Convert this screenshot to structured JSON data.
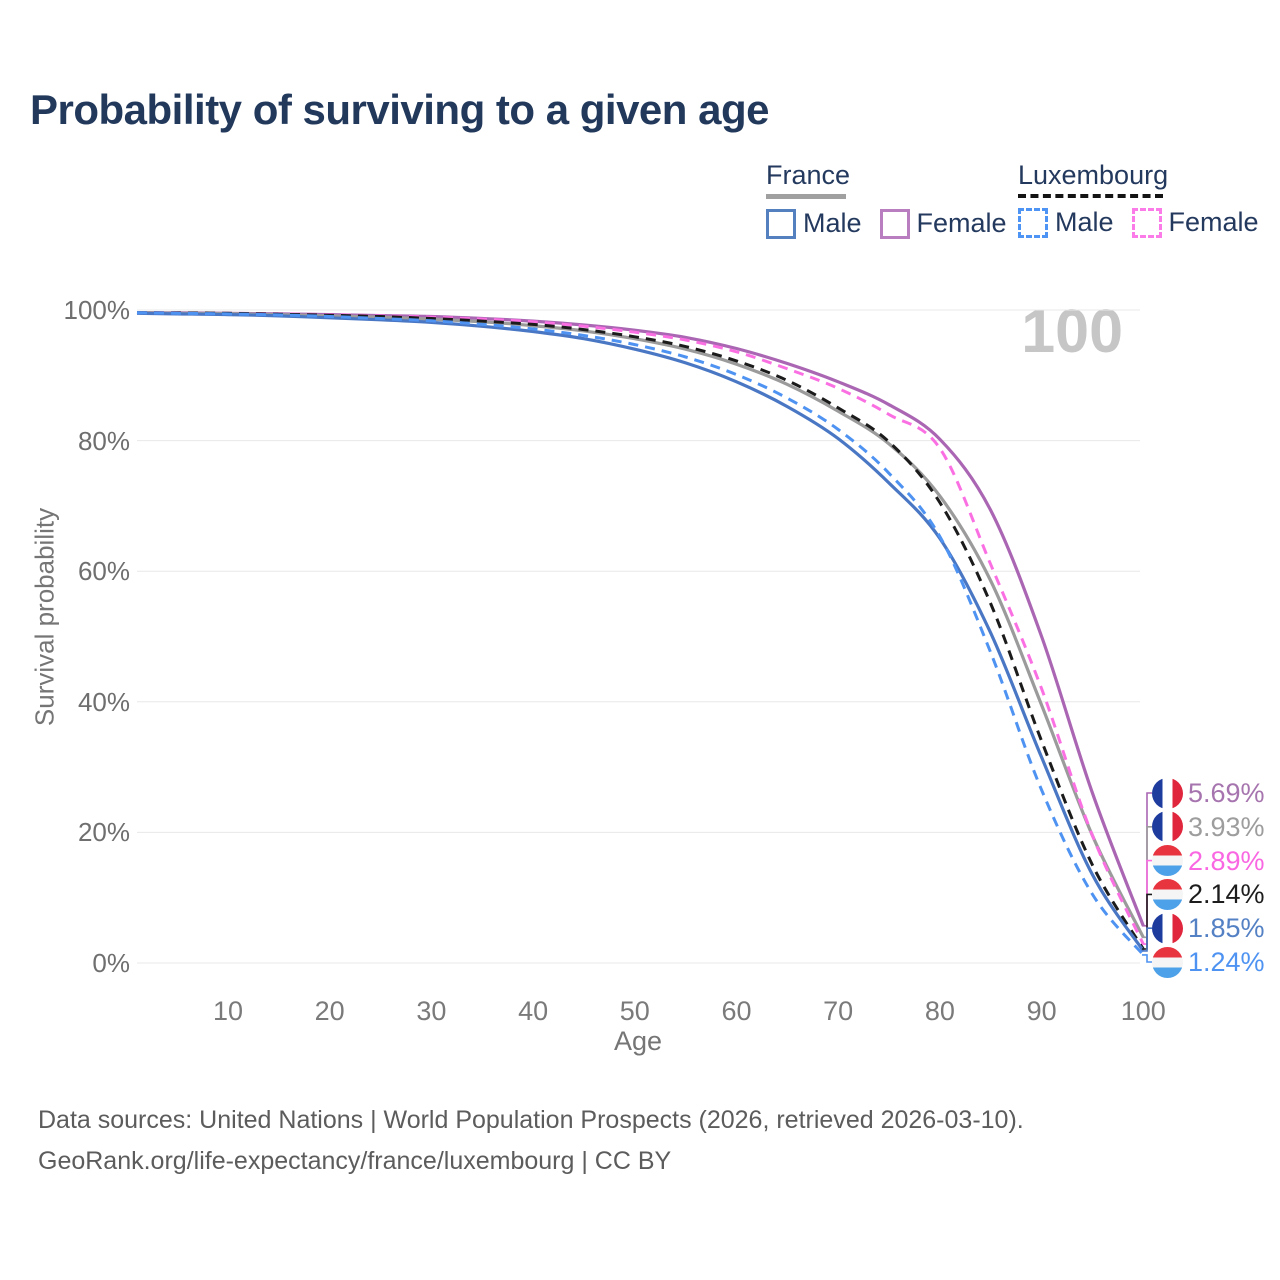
{
  "title": "Probability of surviving to a given age",
  "watermark": "100",
  "legend": {
    "text_color": "#24395e",
    "groups": [
      {
        "name": "France",
        "line_style": "solid",
        "underline_color": "#a0a0a0",
        "items": [
          {
            "label": "Male",
            "swatch_color": "#5580c0",
            "swatch_style": "solid"
          },
          {
            "label": "Female",
            "swatch_color": "#b97ec0",
            "swatch_style": "solid"
          }
        ]
      },
      {
        "name": "Luxembourg",
        "line_style": "dashed",
        "underline_color": "#141414",
        "items": [
          {
            "label": "Male",
            "swatch_color": "#4d94f5",
            "swatch_style": "dashed"
          },
          {
            "label": "Female",
            "swatch_color": "#fb7ce8",
            "swatch_style": "dashed"
          }
        ]
      }
    ]
  },
  "chart_data": {
    "type": "line",
    "title": "Probability of surviving to a given age",
    "xlabel": "Age",
    "ylabel": "Survival probability",
    "xlim": [
      0,
      100
    ],
    "ylim": [
      0,
      100
    ],
    "grid": "horizontal",
    "x_ticks": [
      10,
      20,
      30,
      40,
      50,
      60,
      70,
      80,
      90,
      100
    ],
    "y_ticks": [
      {
        "label": "0%",
        "value": 0
      },
      {
        "label": "20%",
        "value": 20
      },
      {
        "label": "40%",
        "value": 40
      },
      {
        "label": "60%",
        "value": 60
      },
      {
        "label": "80%",
        "value": 80
      },
      {
        "label": "100%",
        "value": 100
      }
    ],
    "x": [
      0,
      5,
      10,
      15,
      20,
      25,
      30,
      35,
      40,
      45,
      50,
      55,
      60,
      65,
      70,
      75,
      80,
      85,
      90,
      95,
      100
    ],
    "series": [
      {
        "name": "France Female",
        "country": "France",
        "sex": "Female",
        "color": "#aa66b3",
        "dashed": false,
        "values": [
          99.6,
          99.55,
          99.5,
          99.4,
          99.3,
          99.15,
          99.0,
          98.7,
          98.3,
          97.7,
          96.9,
          95.8,
          94.1,
          91.8,
          89.0,
          85.5,
          80.2,
          69.3,
          50.0,
          26.0,
          5.69
        ],
        "end_label": "5.69%",
        "label_color": "#a674ae"
      },
      {
        "name": "France Both sexes",
        "country": "France",
        "sex": "Both",
        "color": "#9b9b9b",
        "dashed": false,
        "values": [
          99.6,
          99.5,
          99.45,
          99.3,
          99.1,
          98.9,
          98.6,
          98.2,
          97.6,
          96.8,
          95.6,
          94.0,
          91.7,
          88.6,
          84.5,
          79.5,
          71.5,
          58.5,
          39.5,
          19.5,
          3.93
        ],
        "end_label": "3.93%",
        "label_color": "#9d9d9d"
      },
      {
        "name": "Luxembourg Female",
        "country": "Luxembourg",
        "sex": "Female",
        "color": "#fa70e3",
        "dashed": true,
        "values": [
          99.6,
          99.55,
          99.5,
          99.4,
          99.3,
          99.1,
          98.9,
          98.6,
          98.2,
          97.5,
          96.6,
          95.4,
          93.6,
          91.0,
          88.0,
          84.0,
          78.8,
          61.0,
          42.0,
          19.5,
          2.89
        ],
        "end_label": "2.89%",
        "label_color": "#f967e2"
      },
      {
        "name": "Luxembourg Both sexes",
        "country": "Luxembourg",
        "sex": "Both",
        "color": "#1b1b1b",
        "dashed": true,
        "values": [
          99.6,
          99.55,
          99.5,
          99.35,
          99.2,
          99.0,
          98.7,
          98.3,
          97.8,
          97.0,
          95.9,
          94.4,
          92.2,
          89.2,
          85.0,
          79.8,
          70.5,
          55.0,
          34.0,
          15.0,
          2.14
        ],
        "end_label": "2.14%",
        "label_color": "#1d1d1d"
      },
      {
        "name": "France Male",
        "country": "France",
        "sex": "Male",
        "color": "#4a77c4",
        "dashed": false,
        "values": [
          99.5,
          99.4,
          99.3,
          99.1,
          98.8,
          98.5,
          98.1,
          97.5,
          96.7,
          95.6,
          94.0,
          91.9,
          89.0,
          85.2,
          80.3,
          73.5,
          65.0,
          50.5,
          31.5,
          13.5,
          1.85
        ],
        "end_label": "1.85%",
        "label_color": "#5480c4"
      },
      {
        "name": "Luxembourg Male",
        "country": "Luxembourg",
        "sex": "Male",
        "color": "#4f93f2",
        "dashed": true,
        "values": [
          99.6,
          99.5,
          99.4,
          99.25,
          99.0,
          98.7,
          98.35,
          97.8,
          97.1,
          96.1,
          94.7,
          92.8,
          90.1,
          86.5,
          81.7,
          75.0,
          65.3,
          47.5,
          26.5,
          10.5,
          1.24
        ],
        "end_label": "1.24%",
        "label_color": "#4f93f2"
      }
    ],
    "flags": {
      "France": {
        "orientation": "vertical",
        "colors": [
          "#1e3c9e",
          "#ffffff",
          "#e0263c"
        ]
      },
      "Luxembourg": {
        "orientation": "horizontal",
        "colors": [
          "#e8343f",
          "#f5f5f5",
          "#4da1e8"
        ]
      }
    },
    "gridline_color": "#e8e8e8"
  },
  "footer": {
    "line1": "Data sources: United Nations | World Population Prospects (2026, retrieved 2026-03-10).",
    "line2": "GeoRank.org/life-expectancy/france/luxembourg | CC BY"
  }
}
